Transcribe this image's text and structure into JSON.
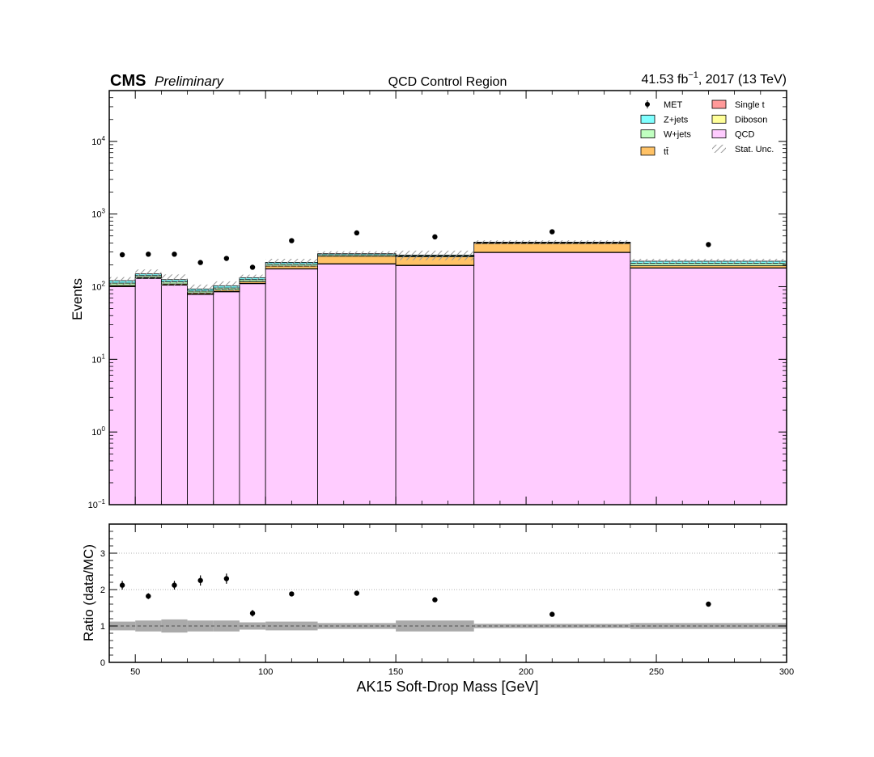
{
  "header": {
    "cms": "CMS",
    "preliminary": "Preliminary",
    "title": "QCD Control Region",
    "lumi_pre": "41.53 fb",
    "lumi_sup": "−1",
    "lumi_post": ", 2017 (13 TeV)"
  },
  "colors": {
    "QCD": "#ffccff",
    "Z+jets": "#80ffff",
    "W+jets": "#c0ffc0",
    "tt": "#ffc266",
    "Single t": "#ff9999",
    "Diboson": "#ffff99",
    "uncertainty_band": "#aaaaaa",
    "hatch": "#999999"
  },
  "legend": {
    "position": "top-right",
    "entries": [
      {
        "key": "MET",
        "label": "MET",
        "kind": "data"
      },
      {
        "key": "Single t",
        "label": "Single t",
        "kind": "box"
      },
      {
        "key": "Z+jets",
        "label": "Z+jets",
        "kind": "box"
      },
      {
        "key": "Diboson",
        "label": "Diboson",
        "kind": "box"
      },
      {
        "key": "W+jets",
        "label": "W+jets",
        "kind": "box"
      },
      {
        "key": "QCD",
        "label": "QCD",
        "kind": "box"
      },
      {
        "key": "tt",
        "label": "tt̄",
        "kind": "box"
      },
      {
        "key": "stat",
        "label": "Stat. Unc.",
        "kind": "hatch"
      }
    ]
  },
  "chart_data": [
    {
      "type": "bar",
      "subtype": "stacked-histogram",
      "log_y": true,
      "xlim": [
        40,
        300
      ],
      "ylim": [
        0.1,
        50000
      ],
      "ylabel": "Events",
      "y_ticks": [
        {
          "v": 0.1,
          "b": "10",
          "e": "−1"
        },
        {
          "v": 1,
          "b": "10",
          "e": "0"
        },
        {
          "v": 10,
          "b": "10",
          "e": "1"
        },
        {
          "v": 100,
          "b": "10",
          "e": "2"
        },
        {
          "v": 1000,
          "b": "10",
          "e": "3"
        },
        {
          "v": 10000,
          "b": "10",
          "e": "4"
        }
      ],
      "bin_edges": [
        40,
        50,
        60,
        70,
        80,
        90,
        100,
        120,
        150,
        180,
        240,
        300
      ],
      "series": [
        {
          "name": "QCD",
          "values": [
            100,
            130,
            105,
            78,
            85,
            110,
            175,
            205,
            195,
            295,
            180
          ]
        },
        {
          "name": "Single t",
          "values": [
            0.5,
            0.5,
            0.5,
            0.5,
            0.5,
            0.5,
            1,
            1.5,
            1.5,
            2,
            1
          ]
        },
        {
          "name": "Diboson",
          "values": [
            0.5,
            0.5,
            0.5,
            0.5,
            0.5,
            0.5,
            1,
            1,
            1,
            1,
            1
          ]
        },
        {
          "name": "tt",
          "values": [
            3,
            3,
            3,
            3,
            4,
            6,
            15,
            55,
            60,
            95,
            12
          ]
        },
        {
          "name": "W+jets",
          "values": [
            8,
            8,
            8,
            5,
            6,
            8,
            12,
            12,
            8,
            9,
            15
          ]
        },
        {
          "name": "Z+jets",
          "values": [
            9,
            8,
            8,
            6,
            7,
            8,
            12,
            10,
            7,
            8,
            15
          ]
        }
      ],
      "data": {
        "name": "MET",
        "x": [
          45,
          55,
          65,
          75,
          85,
          95,
          110,
          135,
          165,
          210,
          270
        ],
        "values": [
          275,
          280,
          280,
          215,
          245,
          185,
          430,
          550,
          485,
          570,
          380
        ]
      },
      "stat_unc_rel": [
        0.12,
        0.15,
        0.18,
        0.15,
        0.15,
        0.1,
        0.12,
        0.08,
        0.15,
        0.06,
        0.08
      ]
    },
    {
      "type": "scatter",
      "subtype": "ratio",
      "xlim": [
        40,
        300
      ],
      "ylim": [
        0,
        3.8
      ],
      "xlabel": "AK15 Soft-Drop Mass [GeV]",
      "ylabel": "Ratio (data/MC)",
      "x_ticks": [
        50,
        100,
        150,
        200,
        250,
        300
      ],
      "y_ticks": [
        0,
        1,
        2,
        3
      ],
      "grid": "horizontal dotted at 1, 2, 3",
      "x": [
        45,
        55,
        65,
        75,
        85,
        95,
        110,
        135,
        165,
        210,
        270
      ],
      "values": [
        2.12,
        1.82,
        2.12,
        2.25,
        2.3,
        1.35,
        1.88,
        1.9,
        1.72,
        1.32,
        1.6
      ],
      "errors": [
        0.12,
        0.08,
        0.12,
        0.14,
        0.14,
        0.09,
        0.05,
        0.05,
        0.04,
        0.03,
        0.04
      ],
      "band_rel": [
        0.12,
        0.15,
        0.18,
        0.15,
        0.15,
        0.1,
        0.12,
        0.08,
        0.15,
        0.06,
        0.08
      ]
    }
  ]
}
